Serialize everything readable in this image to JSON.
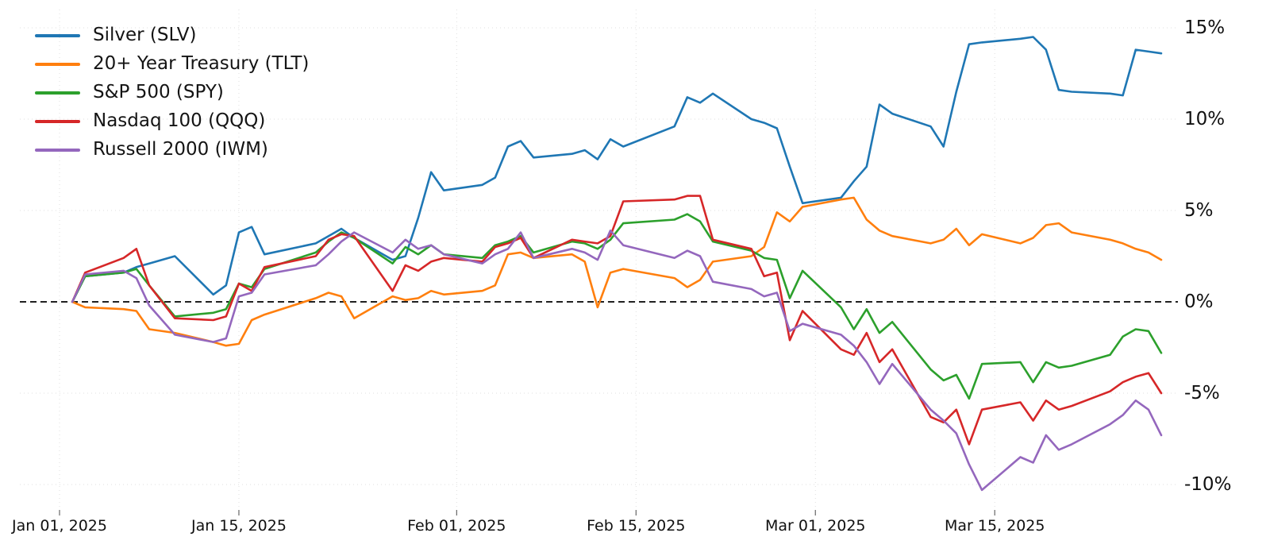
{
  "y_axis": {
    "ticks": [
      "15%",
      "10%",
      "5%",
      "0%",
      "-5%",
      "-10%"
    ],
    "values": [
      15,
      10,
      5,
      0,
      -5,
      -10
    ]
  },
  "x_axis": {
    "ticks": [
      {
        "label": "Jan 01, 2025",
        "date": "2025-01-01"
      },
      {
        "label": "Jan 15, 2025",
        "date": "2025-01-15"
      },
      {
        "label": "Feb 01, 2025",
        "date": "2025-02-01"
      },
      {
        "label": "Feb 15, 2025",
        "date": "2025-02-15"
      },
      {
        "label": "Mar 01, 2025",
        "date": "2025-03-01"
      },
      {
        "label": "Mar 15, 2025",
        "date": "2025-03-15"
      }
    ]
  },
  "chart_data": {
    "type": "line",
    "title": "",
    "xlabel": "",
    "ylabel": "",
    "unit": "percent_return_since_2025-01-01",
    "ylim": [
      -11.5,
      15.8
    ],
    "x_range": [
      "2025-01-01",
      "2025-03-29"
    ],
    "grid": true,
    "zero_line_dashed": true,
    "legend_position": "upper left",
    "x": [
      "2025-01-02",
      "2025-01-03",
      "2025-01-06",
      "2025-01-07",
      "2025-01-08",
      "2025-01-10",
      "2025-01-13",
      "2025-01-14",
      "2025-01-15",
      "2025-01-16",
      "2025-01-17",
      "2025-01-21",
      "2025-01-22",
      "2025-01-23",
      "2025-01-24",
      "2025-01-27",
      "2025-01-28",
      "2025-01-29",
      "2025-01-30",
      "2025-01-31",
      "2025-02-03",
      "2025-02-04",
      "2025-02-05",
      "2025-02-06",
      "2025-02-07",
      "2025-02-10",
      "2025-02-11",
      "2025-02-12",
      "2025-02-13",
      "2025-02-14",
      "2025-02-18",
      "2025-02-19",
      "2025-02-20",
      "2025-02-21",
      "2025-02-24",
      "2025-02-25",
      "2025-02-26",
      "2025-02-27",
      "2025-02-28",
      "2025-03-03",
      "2025-03-04",
      "2025-03-05",
      "2025-03-06",
      "2025-03-07",
      "2025-03-10",
      "2025-03-11",
      "2025-03-12",
      "2025-03-13",
      "2025-03-14",
      "2025-03-17",
      "2025-03-18",
      "2025-03-19",
      "2025-03-20",
      "2025-03-21",
      "2025-03-24",
      "2025-03-25",
      "2025-03-26",
      "2025-03-27",
      "2025-03-28"
    ],
    "series": [
      {
        "name": "Silver (SLV)",
        "color": "#1f77b4",
        "values": [
          0.0,
          1.4,
          1.6,
          1.9,
          2.1,
          2.5,
          0.4,
          0.9,
          3.8,
          4.1,
          2.6,
          3.2,
          3.6,
          4.0,
          3.5,
          2.3,
          2.5,
          4.6,
          7.1,
          6.1,
          6.4,
          6.8,
          8.5,
          8.8,
          7.9,
          8.1,
          8.3,
          7.8,
          8.9,
          8.5,
          9.6,
          11.2,
          10.9,
          11.4,
          10.0,
          9.8,
          9.5,
          7.4,
          5.4,
          5.7,
          6.6,
          7.4,
          10.8,
          10.3,
          9.6,
          8.5,
          11.5,
          14.1,
          14.2,
          14.4,
          14.5,
          13.8,
          11.6,
          11.5,
          11.4,
          11.3,
          13.8,
          13.7,
          13.6
        ]
      },
      {
        "name": "20+ Year Treasury (TLT)",
        "color": "#ff7f0e",
        "values": [
          0.0,
          -0.3,
          -0.4,
          -0.5,
          -1.5,
          -1.7,
          -2.2,
          -2.4,
          -2.3,
          -1.0,
          -0.7,
          0.2,
          0.5,
          0.3,
          -0.9,
          0.3,
          0.1,
          0.2,
          0.6,
          0.4,
          0.6,
          0.9,
          2.6,
          2.7,
          2.4,
          2.6,
          2.2,
          -0.3,
          1.6,
          1.8,
          1.3,
          0.8,
          1.2,
          2.2,
          2.5,
          3.0,
          4.9,
          4.4,
          5.2,
          5.6,
          5.7,
          4.5,
          3.9,
          3.6,
          3.2,
          3.4,
          4.0,
          3.1,
          3.7,
          3.2,
          3.5,
          4.2,
          4.3,
          3.8,
          3.4,
          3.2,
          2.9,
          2.7,
          2.3
        ]
      },
      {
        "name": "S&P 500 (SPY)",
        "color": "#2ca02c",
        "values": [
          0.0,
          1.4,
          1.6,
          1.8,
          0.9,
          -0.8,
          -0.6,
          -0.4,
          1.0,
          0.8,
          1.8,
          2.7,
          3.3,
          3.8,
          3.5,
          2.1,
          3.0,
          2.6,
          3.1,
          2.6,
          2.4,
          3.1,
          3.3,
          3.6,
          2.7,
          3.3,
          3.2,
          2.9,
          3.4,
          4.3,
          4.5,
          4.8,
          4.4,
          3.3,
          2.8,
          2.4,
          2.3,
          0.2,
          1.7,
          -0.3,
          -1.5,
          -0.4,
          -1.7,
          -1.1,
          -3.7,
          -4.3,
          -4.0,
          -5.3,
          -3.4,
          -3.3,
          -4.4,
          -3.3,
          -3.6,
          -3.5,
          -2.9,
          -1.9,
          -1.5,
          -1.6,
          -2.8
        ]
      },
      {
        "name": "Nasdaq 100 (QQQ)",
        "color": "#d62728",
        "values": [
          0.0,
          1.6,
          2.4,
          2.9,
          0.9,
          -0.9,
          -1.0,
          -0.8,
          1.0,
          0.6,
          1.9,
          2.5,
          3.4,
          3.7,
          3.6,
          0.6,
          2.0,
          1.7,
          2.2,
          2.4,
          2.2,
          3.0,
          3.2,
          3.5,
          2.4,
          3.4,
          3.3,
          3.2,
          3.6,
          5.5,
          5.6,
          5.8,
          5.8,
          3.4,
          2.9,
          1.4,
          1.6,
          -2.1,
          -0.5,
          -2.6,
          -2.9,
          -1.7,
          -3.3,
          -2.6,
          -6.3,
          -6.6,
          -5.9,
          -7.8,
          -5.9,
          -5.5,
          -6.5,
          -5.4,
          -5.9,
          -5.7,
          -4.9,
          -4.4,
          -4.1,
          -3.9,
          -5.0
        ]
      },
      {
        "name": "Russell 2000 (IWM)",
        "color": "#9467bd",
        "values": [
          0.0,
          1.5,
          1.7,
          1.3,
          -0.2,
          -1.8,
          -2.2,
          -2.0,
          0.3,
          0.5,
          1.5,
          2.0,
          2.6,
          3.3,
          3.8,
          2.7,
          3.4,
          2.9,
          3.1,
          2.6,
          2.1,
          2.6,
          2.9,
          3.8,
          2.4,
          2.9,
          2.7,
          2.3,
          3.9,
          3.1,
          2.4,
          2.8,
          2.5,
          1.1,
          0.7,
          0.3,
          0.5,
          -1.6,
          -1.2,
          -1.8,
          -2.4,
          -3.3,
          -4.5,
          -3.4,
          -5.9,
          -6.5,
          -7.2,
          -8.9,
          -10.3,
          -8.5,
          -8.8,
          -7.3,
          -8.1,
          -7.8,
          -6.7,
          -6.2,
          -5.4,
          -5.9,
          -7.3
        ]
      }
    ]
  }
}
